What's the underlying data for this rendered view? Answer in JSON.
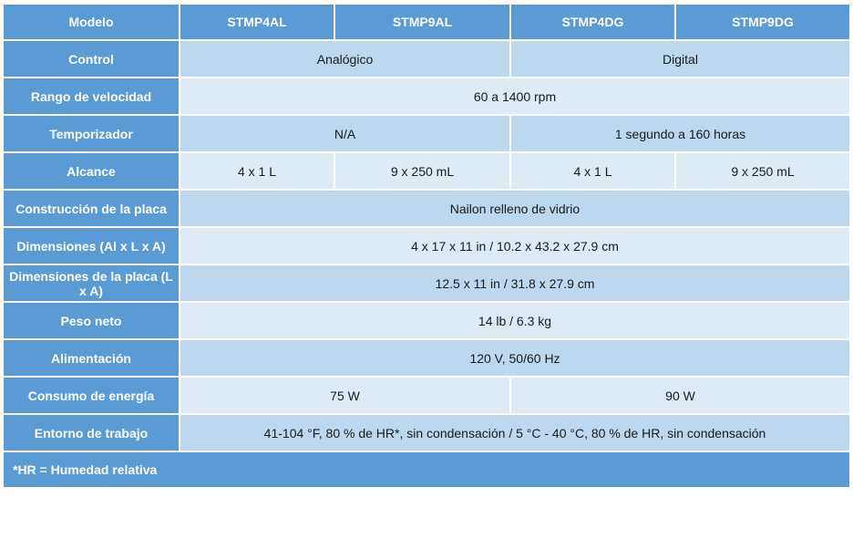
{
  "header": {
    "label": "Modelo",
    "models": [
      "STMP4AL",
      "STMP9AL",
      "STMP4DG",
      "STMP9DG"
    ]
  },
  "rows": {
    "control": {
      "label": "Control",
      "analog": "Analógico",
      "digital": "Digital"
    },
    "speed": {
      "label": "Rango de velocidad",
      "value": "60 a 1400 rpm"
    },
    "timer": {
      "label": "Temporizador",
      "analog": "N/A",
      "digital": "1 segundo a 160 horas"
    },
    "capacity": {
      "label": "Alcance",
      "v1": "4 x 1 L",
      "v2": "9 x 250 mL",
      "v3": "4 x 1 L",
      "v4": "9 x 250 mL"
    },
    "plate_build": {
      "label": "Construcción de la placa",
      "value": "Nailon relleno de vidrio"
    },
    "dims": {
      "label": "Dimensiones (Al x L x A)",
      "value": "4 x 17 x 11 in / 10.2 x 43.2 x 27.9 cm"
    },
    "plate_dims": {
      "label": "Dimensiones de la placa (L x A)",
      "value": "12.5 x 11 in / 31.8 x 27.9 cm"
    },
    "weight": {
      "label": "Peso neto",
      "value": "14 lb / 6.3 kg"
    },
    "power": {
      "label": "Alimentación",
      "value": "120 V, 50/60 Hz"
    },
    "consumption": {
      "label": "Consumo de energía",
      "analog": "75 W",
      "digital": "90 W"
    },
    "environment": {
      "label": "Entorno de trabajo",
      "value": "41-104 °F, 80 % de HR*, sin condensación / 5 °C - 40 °C, 80 % de HR, sin condensación"
    }
  },
  "footnote": "*HR = Humedad relativa",
  "colors": {
    "header": "#5b9bd5",
    "light": "#bdd7ee",
    "pale": "#ddebf7"
  }
}
